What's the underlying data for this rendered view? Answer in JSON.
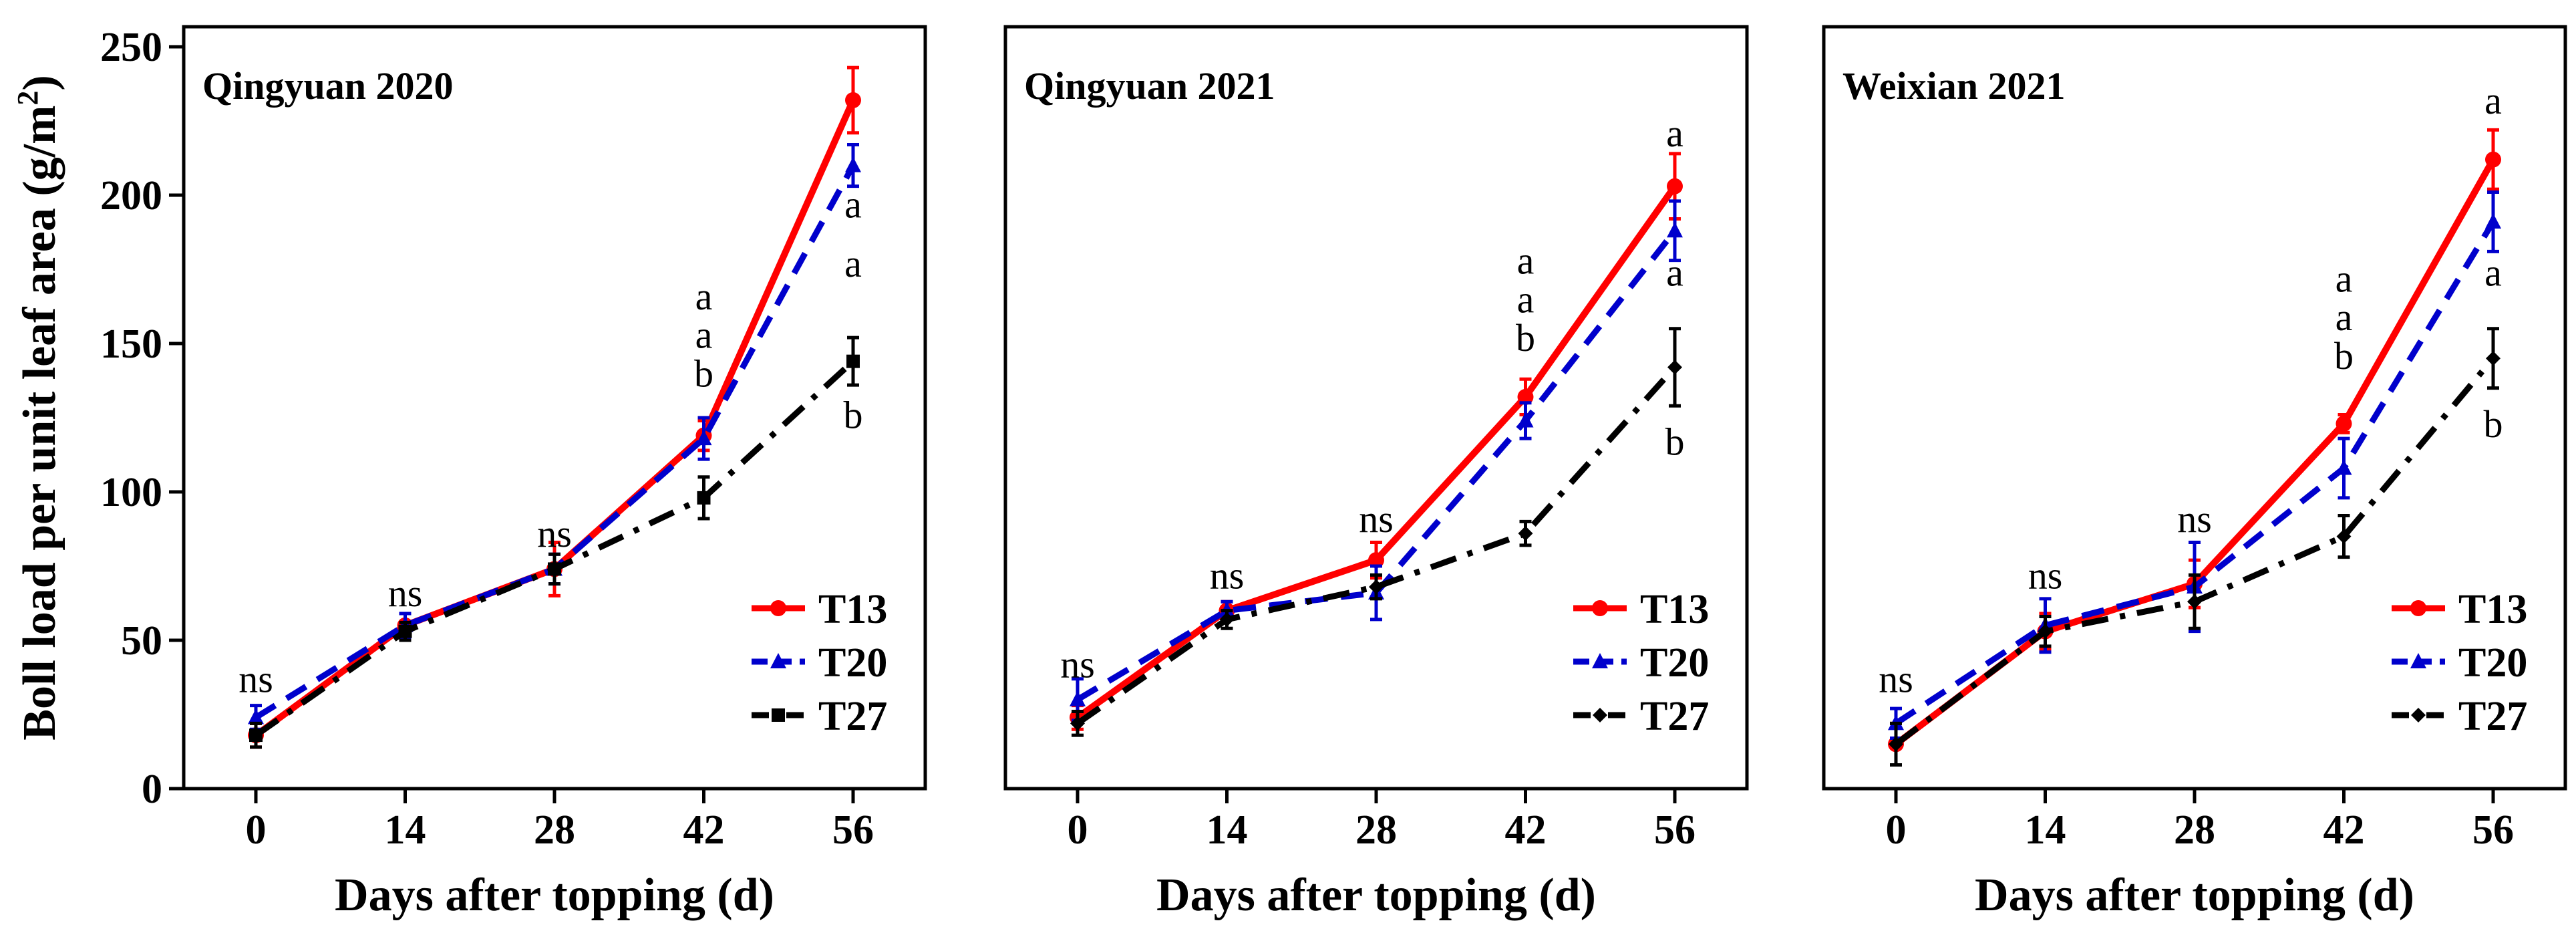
{
  "chart_data": [
    {
      "type": "line",
      "title": "Qingyuan 2020",
      "xlabel": "Days after topping (d)",
      "ylabel": "Boll load per unit leaf area (g/m²)",
      "ylabel_main": "Boll load per unit leaf area (g/m",
      "ylabel_sup": "2",
      "ylabel_close": ")",
      "ylim": [
        0,
        250
      ],
      "yticks": [
        0,
        50,
        100,
        150,
        200,
        250
      ],
      "x": [
        0,
        14,
        28,
        42,
        56
      ],
      "series": [
        {
          "name": "T13",
          "color": "#ff0000",
          "dash": "solid",
          "marker": "circle",
          "values": [
            18,
            55,
            74,
            119,
            232
          ],
          "err": [
            4,
            4,
            9,
            5,
            11
          ]
        },
        {
          "name": "T20",
          "color": "#0000cc",
          "dash": "dashed",
          "marker": "triangle",
          "values": [
            24,
            55,
            74,
            118,
            210
          ],
          "err": [
            4,
            4,
            5,
            7,
            7
          ]
        },
        {
          "name": "T27",
          "color": "#000000",
          "dash": "dashdot",
          "marker": "square",
          "values": [
            18,
            53,
            74,
            98,
            144
          ],
          "err": [
            4,
            3,
            5,
            7,
            8
          ]
        }
      ],
      "annotations": [
        {
          "x": 0,
          "y": 37,
          "text": "ns"
        },
        {
          "x": 14,
          "y": 66,
          "text": "ns"
        },
        {
          "x": 28,
          "y": 86,
          "text": "ns"
        },
        {
          "x": 42,
          "y": 166,
          "text": "a"
        },
        {
          "x": 42,
          "y": 153,
          "text": "a"
        },
        {
          "x": 42,
          "y": 140,
          "text": "b"
        },
        {
          "x": 56,
          "y": 197,
          "text": "a"
        },
        {
          "x": 56,
          "y": 177,
          "text": "a"
        },
        {
          "x": 56,
          "y": 126,
          "text": "b"
        }
      ]
    },
    {
      "type": "line",
      "title": "Qingyuan 2021",
      "xlabel": "Days after topping (d)",
      "ylim": [
        0,
        250
      ],
      "x": [
        0,
        14,
        28,
        42,
        56
      ],
      "series": [
        {
          "name": "T13",
          "color": "#ff0000",
          "dash": "solid",
          "marker": "circle",
          "values": [
            24,
            60,
            77,
            132,
            203
          ],
          "err": [
            4,
            3,
            6,
            6,
            11
          ]
        },
        {
          "name": "T20",
          "color": "#0000cc",
          "dash": "dashed",
          "marker": "triangle",
          "values": [
            30,
            60,
            66,
            124,
            188
          ],
          "err": [
            7,
            3,
            9,
            6,
            10
          ]
        },
        {
          "name": "T27",
          "color": "#000000",
          "dash": "dashdot",
          "marker": "diamond",
          "values": [
            22,
            57,
            68,
            86,
            142
          ],
          "err": [
            4,
            3,
            4,
            4,
            13
          ]
        }
      ],
      "annotations": [
        {
          "x": 0,
          "y": 42,
          "text": "ns"
        },
        {
          "x": 14,
          "y": 72,
          "text": "ns"
        },
        {
          "x": 28,
          "y": 91,
          "text": "ns"
        },
        {
          "x": 42,
          "y": 178,
          "text": "a"
        },
        {
          "x": 42,
          "y": 165,
          "text": "a"
        },
        {
          "x": 42,
          "y": 152,
          "text": "b"
        },
        {
          "x": 56,
          "y": 221,
          "text": "a"
        },
        {
          "x": 56,
          "y": 174,
          "text": "a"
        },
        {
          "x": 56,
          "y": 117,
          "text": "b"
        }
      ]
    },
    {
      "type": "line",
      "title": "Weixian 2021",
      "xlabel": "Days after topping (d)",
      "ylim": [
        0,
        250
      ],
      "x": [
        0,
        14,
        28,
        42,
        56
      ],
      "series": [
        {
          "name": "T13",
          "color": "#ff0000",
          "dash": "solid",
          "marker": "circle",
          "values": [
            15,
            53,
            69,
            123,
            212
          ],
          "err": [
            7,
            6,
            8,
            3,
            10
          ]
        },
        {
          "name": "T20",
          "color": "#0000cc",
          "dash": "dashed",
          "marker": "triangle",
          "values": [
            22,
            55,
            68,
            108,
            191
          ],
          "err": [
            5,
            9,
            15,
            10,
            10
          ]
        },
        {
          "name": "T27",
          "color": "#000000",
          "dash": "dashdot",
          "marker": "diamond",
          "values": [
            15,
            53,
            63,
            85,
            145
          ],
          "err": [
            7,
            5,
            9,
            7,
            10
          ]
        }
      ],
      "annotations": [
        {
          "x": 0,
          "y": 37,
          "text": "ns"
        },
        {
          "x": 14,
          "y": 72,
          "text": "ns"
        },
        {
          "x": 28,
          "y": 91,
          "text": "ns"
        },
        {
          "x": 42,
          "y": 172,
          "text": "a"
        },
        {
          "x": 42,
          "y": 159,
          "text": "a"
        },
        {
          "x": 42,
          "y": 146,
          "text": "b"
        },
        {
          "x": 56,
          "y": 232,
          "text": "a"
        },
        {
          "x": 56,
          "y": 174,
          "text": "a"
        },
        {
          "x": 56,
          "y": 123,
          "text": "b"
        }
      ]
    }
  ]
}
